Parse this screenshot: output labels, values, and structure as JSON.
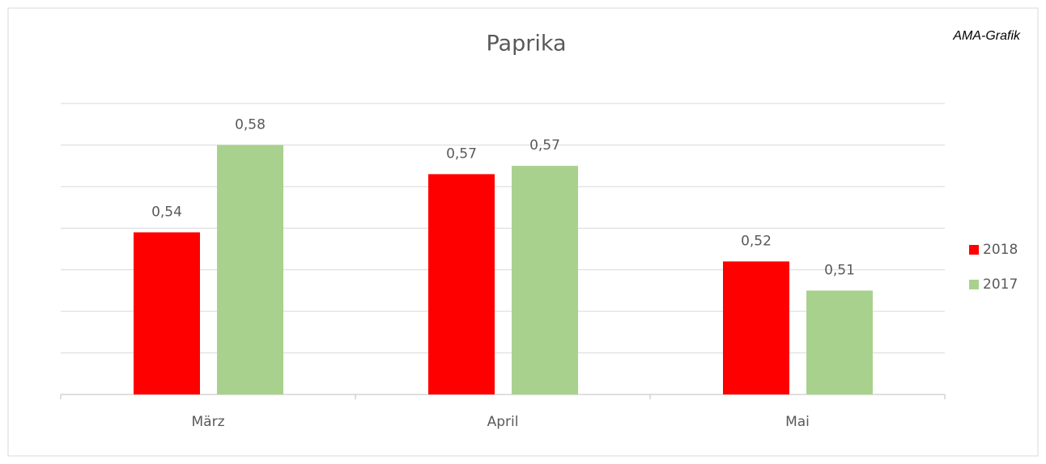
{
  "chart_data": {
    "type": "bar",
    "title": "Paprika",
    "annotation": "AMA-Grafik",
    "categories": [
      "März",
      "April",
      "Mai"
    ],
    "series": [
      {
        "name": "2018",
        "color": "#ff0000",
        "values": [
          0.538,
          0.566,
          0.524
        ],
        "value_labels": [
          "0,54",
          "0,57",
          "0,52"
        ]
      },
      {
        "name": "2017",
        "color": "#a9d18e",
        "values": [
          0.58,
          0.57,
          0.51
        ],
        "value_labels": [
          "0,58",
          "0,57",
          "0,51"
        ]
      }
    ],
    "ylim": [
      0.46,
      0.6
    ],
    "yticks": [
      0.46,
      0.48,
      0.5,
      0.52,
      0.54,
      0.56,
      0.58,
      0.6
    ],
    "grid": true,
    "legend": "right"
  }
}
